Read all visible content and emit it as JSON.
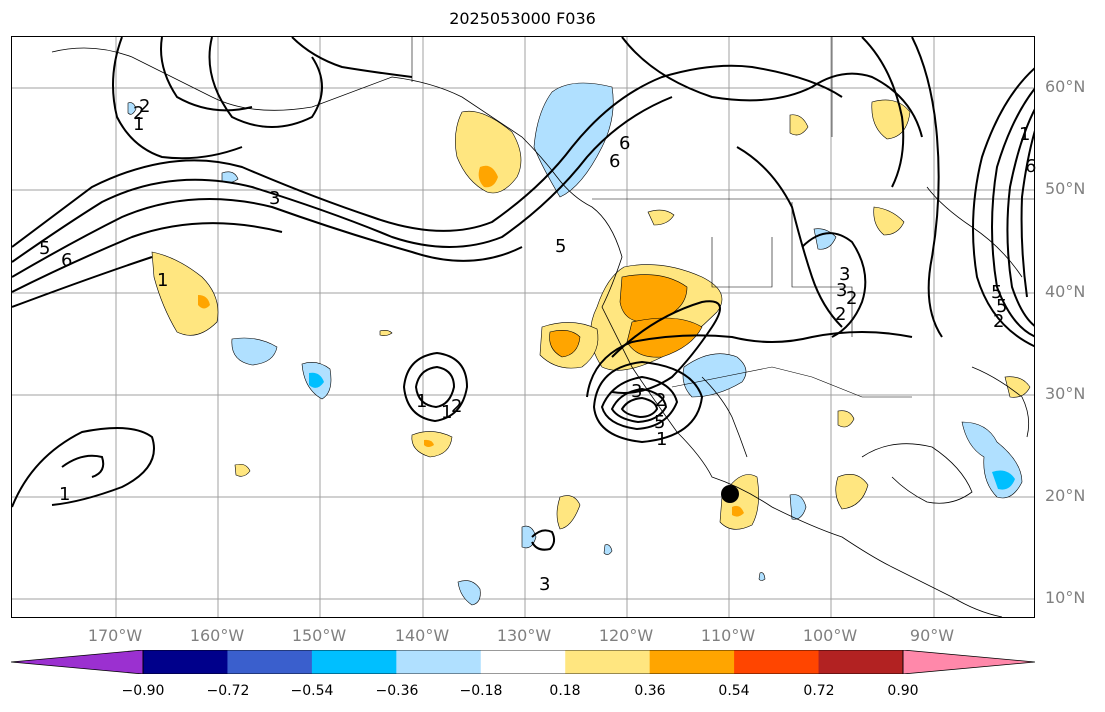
{
  "title": "2025053000 F036",
  "lat_labels": [
    "60°N",
    "50°N",
    "40°N",
    "30°N",
    "20°N",
    "10°N"
  ],
  "lon_labels": [
    "170°W",
    "160°W",
    "150°W",
    "140°W",
    "130°W",
    "120°W",
    "110°W",
    "100°W",
    "90°W"
  ],
  "colorbar": {
    "ticks": [
      "−0.90",
      "−0.72",
      "−0.54",
      "−0.36",
      "−0.18",
      "0.18",
      "0.36",
      "0.54",
      "0.72",
      "0.90"
    ],
    "colors": [
      "#9b30d0",
      "#00008b",
      "#3a5fcd",
      "#00bfff",
      "#b0e0ff",
      "#ffffff",
      "#ffe680",
      "#ffa500",
      "#ff4500",
      "#b22222",
      "#ff88aa"
    ]
  },
  "contour_labels": [
    "1",
    "2",
    "3",
    "6",
    "5",
    "1",
    "2",
    "6",
    "5",
    "3",
    "2",
    "1",
    "2",
    "1",
    "6",
    "5",
    "2",
    "1",
    "5",
    "3",
    "2",
    "3",
    "1",
    "2",
    "6",
    "5",
    "3",
    "1"
  ],
  "marker": "storm-center"
}
